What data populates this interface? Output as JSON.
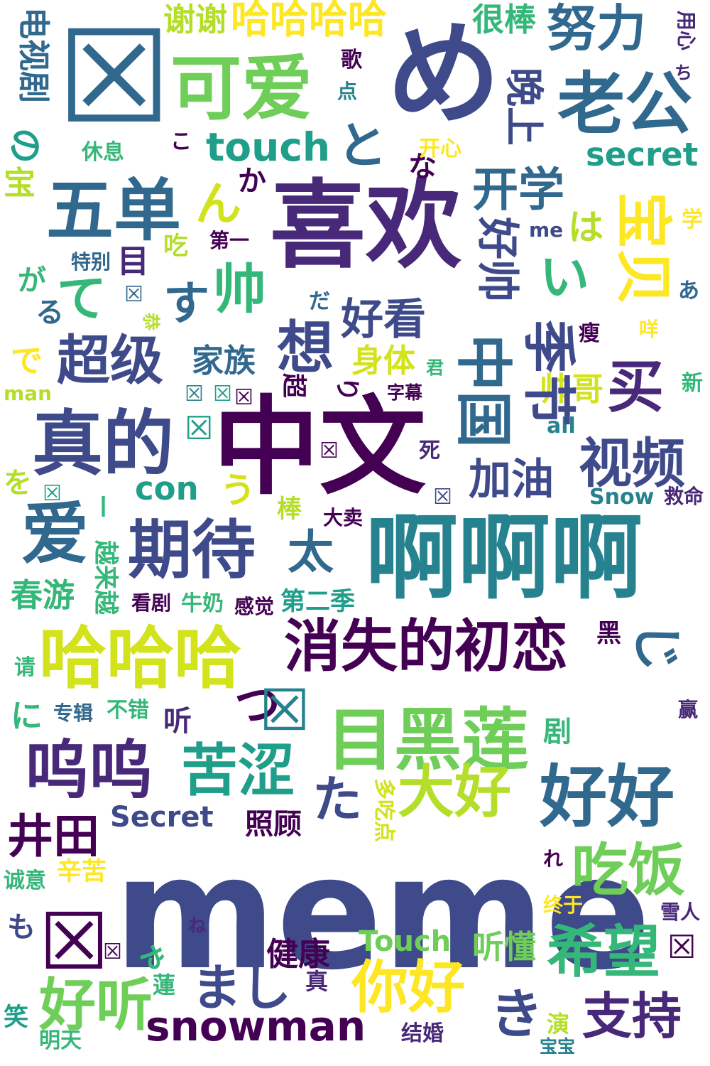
{
  "background_color": "#ffffff",
  "palette": [
    "#440154",
    "#3e4a89",
    "#31688e",
    "#26828e",
    "#1f9e89",
    "#35b779",
    "#6ece58",
    "#b5de2b",
    "#fde725"
  ],
  "words": [
    {
      "text": "meme",
      "color": "#3e4a89"
    },
    {
      "text": "中文",
      "color": "#440154"
    },
    {
      "text": "喜欢",
      "color": "#482878"
    },
    {
      "text": "め",
      "color": "#3e4a89"
    },
    {
      "text": "啊啊啊",
      "color": "#26828e"
    },
    {
      "text": "真的",
      "color": "#3e4a89"
    },
    {
      "text": "可爱",
      "color": "#6ece58"
    },
    {
      "text": "老公",
      "color": "#31688e"
    },
    {
      "text": "五单",
      "color": "#31688e"
    },
    {
      "text": "哈哈哈",
      "color": "#d2e21b"
    },
    {
      "text": "消失的初恋",
      "color": "#440154"
    },
    {
      "text": "目黑莲",
      "color": "#6ece58"
    },
    {
      "text": "哈哈哈哈",
      "color": "#fde725"
    },
    {
      "text": "呜呜",
      "color": "#482878"
    },
    {
      "text": "好好",
      "color": "#31688e"
    },
    {
      "text": "期待",
      "color": "#3e4a89"
    },
    {
      "text": "爱",
      "color": "#31688e"
    },
    {
      "text": "视频",
      "color": "#3e4a89"
    },
    {
      "text": "超级",
      "color": "#3e4a89"
    },
    {
      "text": "苦涩",
      "color": "#1f9e89"
    },
    {
      "text": "大好",
      "color": "#b5de2b"
    },
    {
      "text": "吃饭",
      "color": "#6ece58"
    },
    {
      "text": "希望",
      "color": "#35b779"
    },
    {
      "text": "你好",
      "color": "#fde725"
    },
    {
      "text": "支持",
      "color": "#482878"
    },
    {
      "text": "好听",
      "color": "#6ece58"
    },
    {
      "text": "snowman",
      "color": "#440154"
    },
    {
      "text": "井田",
      "color": "#440154"
    },
    {
      "text": "touch",
      "color": "#1f9e89"
    },
    {
      "text": "secret",
      "color": "#1f9e89"
    },
    {
      "text": "努力",
      "color": "#31688e"
    },
    {
      "text": "谢谢",
      "color": "#b5de2b"
    },
    {
      "text": "很棒",
      "color": "#35b779"
    },
    {
      "text": "开学",
      "color": "#31688e"
    },
    {
      "text": "好看",
      "color": "#3e4a89"
    },
    {
      "text": "家族",
      "color": "#31688e"
    },
    {
      "text": "身体",
      "color": "#d2e21b"
    },
    {
      "text": "帅哥",
      "color": "#d2e21b"
    },
    {
      "text": "加油",
      "color": "#3e4a89"
    },
    {
      "text": "买",
      "color": "#482878"
    },
    {
      "text": "太",
      "color": "#31688e"
    },
    {
      "text": "春游",
      "color": "#35b779"
    },
    {
      "text": "第二季",
      "color": "#1f9e89"
    },
    {
      "text": "健康",
      "color": "#440154"
    },
    {
      "text": "听懂",
      "color": "#6ece58"
    },
    {
      "text": "照顾",
      "color": "#440154"
    },
    {
      "text": "辛苦",
      "color": "#fde725"
    },
    {
      "text": "诚意",
      "color": "#35b779"
    },
    {
      "text": "Secret",
      "color": "#3e4a89"
    },
    {
      "text": "Touch",
      "color": "#6ece58"
    },
    {
      "text": "Snow",
      "color": "#26828e"
    },
    {
      "text": "con",
      "color": "#1f9e89"
    },
    {
      "text": "all",
      "color": "#26828e"
    },
    {
      "text": "man",
      "color": "#b5de2b"
    },
    {
      "text": "me",
      "color": "#3e4a89"
    },
    {
      "text": "想",
      "color": "#3e4a89"
    },
    {
      "text": "帅",
      "color": "#35b779"
    },
    {
      "text": "す",
      "color": "#31688e"
    },
    {
      "text": "て",
      "color": "#35b779"
    },
    {
      "text": "で",
      "color": "#fde725"
    },
    {
      "text": "い",
      "color": "#35b779"
    },
    {
      "text": "ん",
      "color": "#d2e21b"
    },
    {
      "text": "と",
      "color": "#31688e"
    },
    {
      "text": "た",
      "color": "#3e4a89"
    },
    {
      "text": "き",
      "color": "#3e4a89"
    },
    {
      "text": "まし",
      "color": "#3e4a89"
    },
    {
      "text": "つ",
      "color": "#440154"
    },
    {
      "text": "が",
      "color": "#35b779"
    },
    {
      "text": "る",
      "color": "#31688e"
    },
    {
      "text": "を",
      "color": "#b5de2b"
    },
    {
      "text": "に",
      "color": "#35b779"
    },
    {
      "text": "も",
      "color": "#3e4a89"
    },
    {
      "text": "う",
      "color": "#d2e21b"
    },
    {
      "text": "は",
      "color": "#b5de2b"
    },
    {
      "text": "か",
      "color": "#440154"
    },
    {
      "text": "こ",
      "color": "#440154"
    },
    {
      "text": "ね",
      "color": "#482878"
    },
    {
      "text": "れ",
      "color": "#440154"
    },
    {
      "text": "あ",
      "color": "#31688e"
    },
    {
      "text": "だ",
      "color": "#31688e"
    },
    {
      "text": "ち",
      "color": "#482878"
    },
    {
      "text": "な",
      "color": "#440154"
    },
    {
      "text": "の",
      "color": "#1f9e89"
    },
    {
      "text": "宝",
      "color": "#b5de2b"
    },
    {
      "text": "目",
      "color": "#482878"
    },
    {
      "text": "吃",
      "color": "#b5de2b"
    },
    {
      "text": "第一",
      "color": "#440154"
    },
    {
      "text": "特别",
      "color": "#31688e"
    },
    {
      "text": "歌",
      "color": "#440154"
    },
    {
      "text": "点",
      "color": "#26828e"
    },
    {
      "text": "休息",
      "color": "#35b779"
    },
    {
      "text": "开心",
      "color": "#fde725"
    },
    {
      "text": "学",
      "color": "#fde725"
    },
    {
      "text": "瘦",
      "color": "#440154"
    },
    {
      "text": "咩",
      "color": "#fde725"
    },
    {
      "text": "君",
      "color": "#35b779"
    },
    {
      "text": "新",
      "color": "#35b779"
    },
    {
      "text": "字幕",
      "color": "#440154"
    },
    {
      "text": "死",
      "color": "#482878"
    },
    {
      "text": "棒",
      "color": "#b5de2b"
    },
    {
      "text": "大卖",
      "color": "#440154"
    },
    {
      "text": "救命",
      "color": "#482878"
    },
    {
      "text": "看剧",
      "color": "#440154"
    },
    {
      "text": "牛奶",
      "color": "#35b779"
    },
    {
      "text": "感觉",
      "color": "#440154"
    },
    {
      "text": "黑",
      "color": "#440154"
    },
    {
      "text": "请",
      "color": "#35b779"
    },
    {
      "text": "专辑",
      "color": "#31688e"
    },
    {
      "text": "不错",
      "color": "#35b779"
    },
    {
      "text": "听",
      "color": "#482878"
    },
    {
      "text": "剧",
      "color": "#35b779"
    },
    {
      "text": "赢",
      "color": "#482878"
    },
    {
      "text": "终于",
      "color": "#fde725"
    },
    {
      "text": "雪人",
      "color": "#482878"
    },
    {
      "text": "笑",
      "color": "#1f9e89"
    },
    {
      "text": "明天",
      "color": "#35b779"
    },
    {
      "text": "结婚",
      "color": "#482878"
    },
    {
      "text": "宝宝",
      "color": "#26828e"
    },
    {
      "text": "蓮",
      "color": "#35b779"
    },
    {
      "text": "真",
      "color": "#482878"
    },
    {
      "text": "演",
      "color": "#b5de2b"
    },
    {
      "text": "电视剧",
      "color": "#31688e"
    },
    {
      "text": "用心",
      "color": "#482878"
    },
    {
      "text": "晚上",
      "color": "#3e4a89"
    },
    {
      "text": "好帅",
      "color": "#3e4a89"
    },
    {
      "text": "宝贝",
      "color": "#fde725"
    },
    {
      "text": "中国",
      "color": "#31688e"
    },
    {
      "text": "季节",
      "color": "#3e4a89"
    },
    {
      "text": "越来越",
      "color": "#35b779"
    },
    {
      "text": "多吃点",
      "color": "#d2e21b"
    },
    {
      "text": "恭",
      "color": "#b5de2b"
    },
    {
      "text": "超",
      "color": "#440154"
    },
    {
      "text": "り",
      "color": "#440154"
    },
    {
      "text": "ゃ",
      "color": "#35b779"
    },
    {
      "text": "ー",
      "color": "#35b779"
    },
    {
      "text": "じ",
      "color": "#31688e"
    },
    {
      "text": "☒",
      "color": "#31688e"
    },
    {
      "text": "☒",
      "color": "#26828e"
    },
    {
      "text": "☒",
      "color": "#440154"
    },
    {
      "text": "☒",
      "color": "#26828e"
    },
    {
      "text": "☒",
      "color": "#1f9e89"
    },
    {
      "text": "☒",
      "color": "#440154"
    },
    {
      "text": "☒",
      "color": "#1f9e89"
    },
    {
      "text": "☒",
      "color": "#31688e"
    },
    {
      "text": "☒",
      "color": "#3e4a89"
    },
    {
      "text": "☒",
      "color": "#1f9e89"
    },
    {
      "text": "☒",
      "color": "#440154"
    },
    {
      "text": "☒",
      "color": "#440154"
    },
    {
      "text": "☒",
      "color": "#440154"
    }
  ]
}
